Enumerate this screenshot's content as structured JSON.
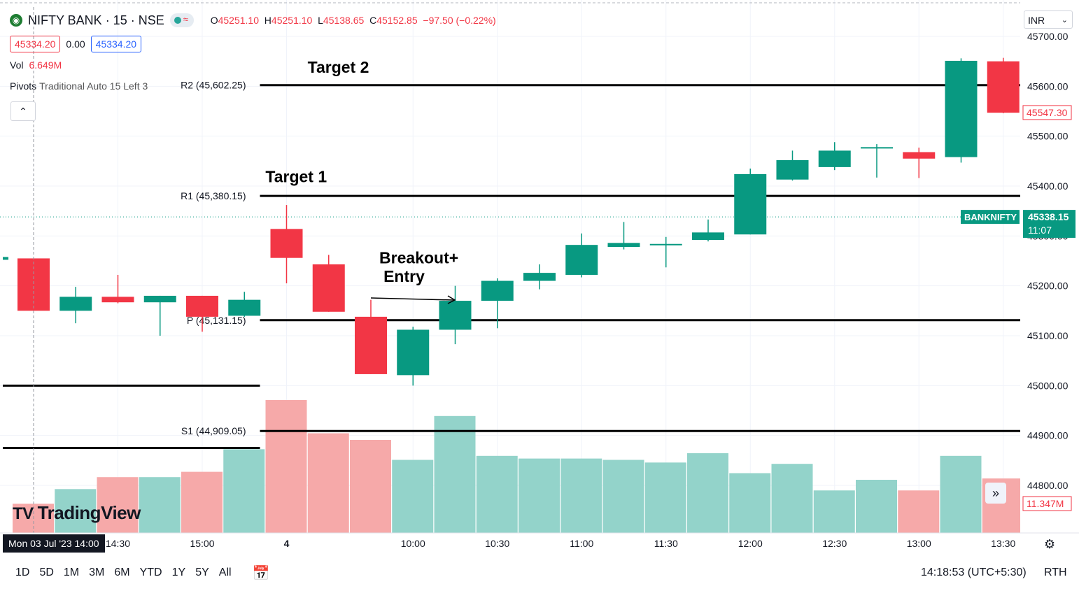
{
  "header": {
    "symbol": "NIFTY BANK · 15 · NSE",
    "open_label": "O",
    "open": "45251.10",
    "high_label": "H",
    "high": "45251.10",
    "low_label": "L",
    "low": "45138.65",
    "close_label": "C",
    "close": "45152.85",
    "change": "−97.50 (−0.22%)",
    "sell_price": "45334.20",
    "spread": "0.00",
    "buy_price": "45334.20",
    "vol_label": "Vol",
    "vol_value": "6.649M",
    "pivots_label": "Pivots",
    "pivots_params": "Traditional Auto 15 Left 3",
    "collapse_icon": "chevron-up-icon",
    "currency": "INR"
  },
  "branding": {
    "logo_text": "TradingView"
  },
  "bottom_bar": {
    "ranges": [
      "1D",
      "5D",
      "1M",
      "3M",
      "6M",
      "YTD",
      "1Y",
      "5Y",
      "All"
    ],
    "time": "14:18:53 (UTC+5:30)",
    "session": "RTH",
    "date_label": "Mon 03 Jul '23   14:00"
  },
  "colors": {
    "up": "#089981",
    "down": "#f23645",
    "up_vol": "#93d3ca",
    "down_vol": "#f6a9a9",
    "axis_text": "#131722"
  },
  "chart_data": {
    "type": "candlestick",
    "title": "NIFTY BANK · 15 · NSE",
    "ylim": [
      44660,
      45750
    ],
    "y_ticks": [
      44800,
      44900,
      45000,
      45100,
      45200,
      45300,
      45400,
      45500,
      45600,
      45700
    ],
    "y_tick_labels": [
      "44800.00",
      "44900.00",
      "45000.00",
      "45100.00",
      "45200.00",
      "45300.00",
      "45400.00",
      "45500.00",
      "45600.00",
      "45700.00"
    ],
    "x_ticks": [
      {
        "i": 2,
        "label": "14:30"
      },
      {
        "i": 4,
        "label": "15:00"
      },
      {
        "i": 6,
        "label": "4"
      },
      {
        "i": 9,
        "label": "10:00"
      },
      {
        "i": 11,
        "label": "10:30"
      },
      {
        "i": 13,
        "label": "11:00"
      },
      {
        "i": 15,
        "label": "11:30"
      },
      {
        "i": 17,
        "label": "12:00"
      },
      {
        "i": 19,
        "label": "12:30"
      },
      {
        "i": 21,
        "label": "13:00"
      },
      {
        "i": 23,
        "label": "13:30"
      }
    ],
    "candles": [
      {
        "o": 45255,
        "h": 45255,
        "l": 45150,
        "c": 45150
      },
      {
        "o": 45150,
        "h": 45198,
        "l": 45125,
        "c": 45178
      },
      {
        "o": 45178,
        "h": 45222,
        "l": 45165,
        "c": 45167
      },
      {
        "o": 45167,
        "h": 45180,
        "l": 45100,
        "c": 45180
      },
      {
        "o": 45180,
        "h": 45180,
        "l": 45108,
        "c": 45138
      },
      {
        "o": 45140,
        "h": 45188,
        "l": 45138,
        "c": 45172
      },
      {
        "o": 45314,
        "h": 45362,
        "l": 45205,
        "c": 45256
      },
      {
        "o": 45243,
        "h": 45262,
        "l": 45148,
        "c": 45148
      },
      {
        "o": 45138,
        "h": 45172,
        "l": 45023,
        "c": 45023
      },
      {
        "o": 45021,
        "h": 45118,
        "l": 45000,
        "c": 45112
      },
      {
        "o": 45112,
        "h": 45200,
        "l": 45083,
        "c": 45170
      },
      {
        "o": 45170,
        "h": 45215,
        "l": 45115,
        "c": 45210
      },
      {
        "o": 45210,
        "h": 45243,
        "l": 45193,
        "c": 45226
      },
      {
        "o": 45222,
        "h": 45305,
        "l": 45217,
        "c": 45282
      },
      {
        "o": 45278,
        "h": 45328,
        "l": 45273,
        "c": 45286
      },
      {
        "o": 45284,
        "h": 45298,
        "l": 45237,
        "c": 45284
      },
      {
        "o": 45292,
        "h": 45333,
        "l": 45289,
        "c": 45307
      },
      {
        "o": 45303,
        "h": 45435,
        "l": 45303,
        "c": 45424
      },
      {
        "o": 45413,
        "h": 45471,
        "l": 45411,
        "c": 45452
      },
      {
        "o": 45438,
        "h": 45488,
        "l": 45432,
        "c": 45471
      },
      {
        "o": 45478,
        "h": 45484,
        "l": 45417,
        "c": 45478
      },
      {
        "o": 45468,
        "h": 45477,
        "l": 45416,
        "c": 45455
      },
      {
        "o": 45458,
        "h": 45656,
        "l": 45447,
        "c": 45651
      },
      {
        "o": 45650,
        "h": 45657,
        "l": 45546,
        "c": 45547
      }
    ],
    "volume": [
      0.22,
      0.33,
      0.42,
      0.42,
      0.46,
      0.63,
      1.0,
      0.75,
      0.7,
      0.55,
      0.88,
      0.58,
      0.56,
      0.56,
      0.55,
      0.53,
      0.6,
      0.45,
      0.52,
      0.32,
      0.4,
      0.32,
      0.58,
      0.41
    ],
    "pivots": [
      {
        "label": "R2 (45,602.25)",
        "value": 45602.25
      },
      {
        "label": "R1 (45,380.15)",
        "value": 45380.15
      },
      {
        "label": "P (45,131.15)",
        "value": 45131.15
      },
      {
        "label": "S1 (44,909.05)",
        "value": 44909.05
      }
    ],
    "prev_session_levels": [
      45000,
      44875
    ],
    "current_price": {
      "label": "BANKNIFTY",
      "value": "45338.15",
      "countdown": "11:07",
      "level": 45338.15
    },
    "last_close_tag": {
      "value": "45547.30",
      "level": 45547.3
    },
    "volume_tag": "11.347M",
    "annotations": [
      {
        "text": "Target 2",
        "i": 6.5,
        "level": 45627
      },
      {
        "text": "Target 1",
        "i": 5.5,
        "level": 45408
      },
      {
        "text": "Breakout+",
        "i": 8.2,
        "level": 45245
      },
      {
        "text": "Entry",
        "i": 8.3,
        "level": 45208
      }
    ]
  }
}
